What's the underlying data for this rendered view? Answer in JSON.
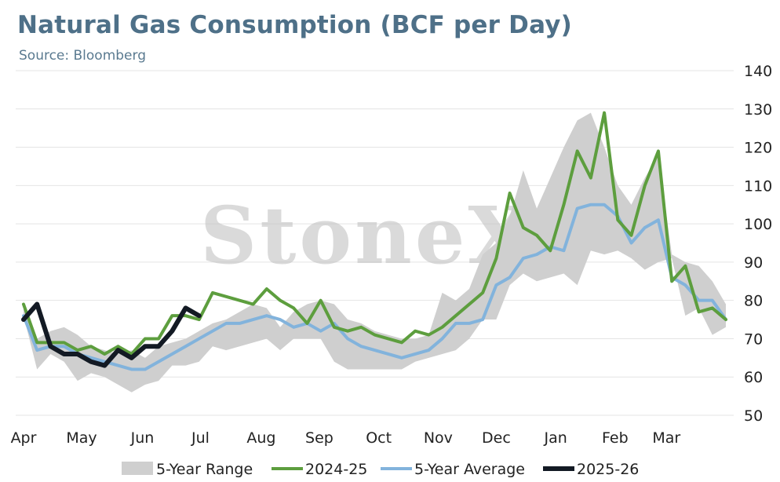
{
  "header": {
    "title": "Natural Gas Consumption (BCF per Day)",
    "subtitle": "Source: Bloomberg"
  },
  "watermark": "StoneX",
  "colors": {
    "range": "#cfcfcf",
    "series_2024_25": "#5d9e3e",
    "average": "#82b3dc",
    "series_2025_26": "#131a24",
    "gridline": "#e4e4e4",
    "title": "#4e7088"
  },
  "chart_data": {
    "type": "line",
    "title": "Natural Gas Consumption (BCF per Day)",
    "xlabel": "",
    "ylabel": "",
    "ylim": [
      50,
      140
    ],
    "yticks": [
      50,
      60,
      70,
      80,
      90,
      100,
      110,
      120,
      130,
      140
    ],
    "y_axis_side": "right",
    "grid": true,
    "legend_position": "bottom",
    "x_unit": "week",
    "month_ticks": [
      {
        "label": "Apr",
        "week": 0
      },
      {
        "label": "May",
        "week": 4.3
      },
      {
        "label": "Jun",
        "week": 8.8
      },
      {
        "label": "Jul",
        "week": 13.1
      },
      {
        "label": "Aug",
        "week": 17.6
      },
      {
        "label": "Sep",
        "week": 21.9
      },
      {
        "label": "Oct",
        "week": 26.3
      },
      {
        "label": "Nov",
        "week": 30.7
      },
      {
        "label": "Dec",
        "week": 35.0
      },
      {
        "label": "Jan",
        "week": 39.4
      },
      {
        "label": "Feb",
        "week": 43.8
      },
      {
        "label": "Mar",
        "week": 47.6
      }
    ],
    "range": {
      "name": "5-Year Range",
      "upper": [
        78,
        70,
        72,
        73,
        71,
        68,
        67,
        66,
        67,
        65,
        68,
        69,
        70,
        72,
        74,
        75,
        77,
        79,
        78,
        73,
        77,
        79,
        80,
        79,
        75,
        74,
        72,
        71,
        70,
        70,
        71,
        82,
        80,
        83,
        92,
        95,
        102,
        114,
        104,
        112,
        120,
        127,
        129,
        120,
        110,
        105,
        112,
        118,
        92,
        90,
        89,
        85,
        79
      ],
      "lower": [
        76,
        62,
        66,
        64,
        59,
        61,
        60,
        58,
        56,
        58,
        59,
        63,
        63,
        64,
        68,
        67,
        68,
        69,
        70,
        67,
        70,
        70,
        70,
        64,
        62,
        62,
        62,
        62,
        62,
        64,
        65,
        66,
        67,
        70,
        75,
        75,
        84,
        87,
        85,
        86,
        87,
        84,
        93,
        92,
        93,
        91,
        88,
        90,
        91,
        76,
        78,
        71,
        73
      ]
    },
    "series": [
      {
        "name": "2024-25",
        "x": [
          0,
          1,
          2,
          3,
          4,
          5,
          6,
          7,
          8,
          9,
          10,
          11,
          12,
          13,
          14,
          15,
          16,
          17,
          18,
          19,
          20,
          21,
          22,
          23,
          24,
          25,
          26,
          27,
          28,
          29,
          30,
          31,
          32,
          33,
          34,
          35,
          36,
          37,
          38,
          39,
          40,
          41,
          42,
          43,
          44,
          45,
          46,
          47,
          48,
          49,
          50,
          51,
          52
        ],
        "values": [
          79,
          69,
          69,
          69,
          67,
          68,
          66,
          68,
          66,
          70,
          70,
          76,
          76,
          75,
          82,
          81,
          80,
          79,
          83,
          80,
          78,
          74,
          80,
          73,
          72,
          73,
          71,
          70,
          69,
          72,
          71,
          73,
          76,
          79,
          82,
          91,
          108,
          99,
          97,
          93,
          105,
          119,
          112,
          129,
          101,
          97,
          110,
          119,
          85,
          89,
          77,
          78,
          75
        ]
      },
      {
        "name": "5-Year Average",
        "x": [
          0,
          1,
          2,
          3,
          4,
          5,
          6,
          7,
          8,
          9,
          10,
          11,
          12,
          13,
          14,
          15,
          16,
          17,
          18,
          19,
          20,
          21,
          22,
          23,
          24,
          25,
          26,
          27,
          28,
          29,
          30,
          31,
          32,
          33,
          34,
          35,
          36,
          37,
          38,
          39,
          40,
          41,
          42,
          43,
          44,
          45,
          46,
          47,
          48,
          49,
          50,
          51,
          52
        ],
        "values": [
          76,
          67,
          68,
          68,
          66,
          65,
          64,
          63,
          62,
          62,
          64,
          66,
          68,
          70,
          72,
          74,
          74,
          75,
          76,
          75,
          73,
          74,
          72,
          74,
          70,
          68,
          67,
          66,
          65,
          66,
          67,
          70,
          74,
          74,
          75,
          84,
          86,
          91,
          92,
          94,
          93,
          104,
          105,
          105,
          102,
          95,
          99,
          101,
          86,
          84,
          80,
          80,
          75
        ]
      },
      {
        "name": "2025-26",
        "x": [
          0,
          1,
          2,
          3,
          4,
          5,
          6,
          7,
          8,
          9,
          10,
          11,
          12,
          13
        ],
        "values": [
          75,
          79,
          68,
          66,
          66,
          64,
          63,
          67,
          65,
          68,
          68,
          72,
          78,
          76
        ]
      }
    ]
  },
  "legend": {
    "range_label": "5-Year Range",
    "s1_label": "2024-25",
    "avg_label": "5-Year Average",
    "s2_label": "2025-26"
  }
}
